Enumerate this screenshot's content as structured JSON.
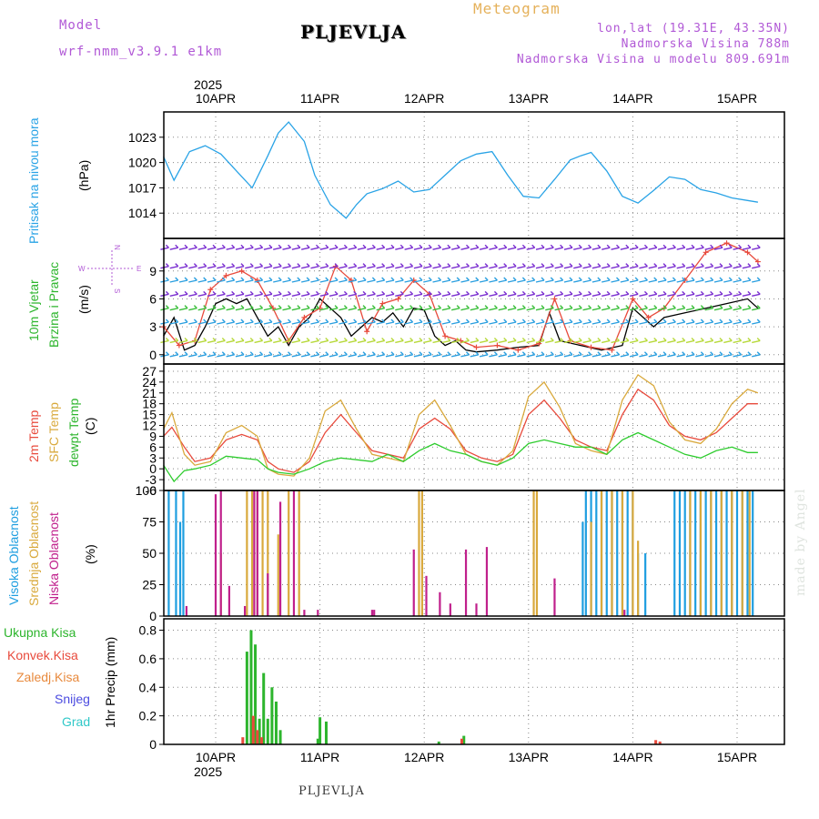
{
  "header": {
    "model_label": "Model",
    "model_version": "wrf-nmm_v3.9.1  e1km",
    "location": "PLJEVLJA",
    "app_title": "Meteogram",
    "coords": "lon,lat (19.31E, 43.35N)",
    "elevation": "Nadmorska Visina 788m",
    "model_elevation": "Nadmorska Visina u modelu 809.691m",
    "footer_location": "PLJEVLJA",
    "watermark": "made by Angel"
  },
  "time_axis": {
    "year": "2025",
    "days": [
      "10APR",
      "11APR",
      "12APR",
      "13APR",
      "14APR",
      "15APR"
    ]
  },
  "panel_labels": {
    "pressure": "Pritisak na nivou mora",
    "pressure_unit": "(hPa)",
    "wind_1": "10m Vjetar",
    "wind_2": "Brzina i Pravac",
    "wind_unit": "(m/s)",
    "compass_n": "N",
    "compass_s": "S",
    "compass_w": "W",
    "compass_e": "E",
    "temp_2m": "2m Temp",
    "temp_sfc": "SFC Temp",
    "temp_dew": "dewpt Temp",
    "temp_unit": "(C)",
    "cloud_high": "Visoka Oblacnost",
    "cloud_mid": "Srednja Oblacnost",
    "cloud_low": "Niska Oblacnost",
    "cloud_unit": "(%)",
    "precip_total": "Ukupna Kisa",
    "precip_conv": "Konvek.Kisa",
    "precip_frozen": "Zaledj.Kisa",
    "precip_snow": "Snijeg",
    "precip_hail": "Grad",
    "precip_unit": "1hr Precip (mm)"
  },
  "colors": {
    "pressure": "#29a3e6",
    "temp_2m": "#e84a3c",
    "temp_sfc": "#d9a93c",
    "dewpoint": "#2ecc2e",
    "wind_speed": "#000000",
    "wind_gust": "#e84a3c",
    "cloud_high": "#1e9ee0",
    "cloud_mid": "#d9a93c",
    "cloud_low": "#c0208c",
    "precip_total": "#2db52d",
    "precip_conv": "#e84a3c",
    "precip_frozen": "#e8893c",
    "precip_snow": "#4b4be0",
    "precip_hail": "#30c8c8"
  },
  "chart_data": [
    {
      "type": "line",
      "panel": "pressure",
      "ylabel": "(hPa)",
      "yticks": [
        1014,
        1017,
        1020,
        1023
      ],
      "ylim": [
        1011,
        1026
      ],
      "x_days": [
        0,
        0.1,
        0.25,
        0.4,
        0.55,
        0.7,
        0.85,
        1.0,
        1.1,
        1.2,
        1.35,
        1.45,
        1.6,
        1.75,
        1.85,
        1.95,
        2.1,
        2.25,
        2.4,
        2.55,
        2.7,
        2.85,
        3.0,
        3.15,
        3.3,
        3.45,
        3.6,
        3.75,
        3.9,
        4.0,
        4.1,
        4.25,
        4.4,
        4.55,
        4.7,
        4.85,
        5.0,
        5.15,
        5.3,
        5.45,
        5.6,
        5.7
      ],
      "values": [
        1020.7,
        1017.9,
        1021.3,
        1022.0,
        1021.0,
        1019.0,
        1017.0,
        1020.8,
        1023.5,
        1024.8,
        1022.5,
        1018.5,
        1015.0,
        1013.4,
        1015.0,
        1016.3,
        1016.9,
        1017.8,
        1016.5,
        1016.8,
        1018.5,
        1020.2,
        1021.0,
        1021.3,
        1018.5,
        1016.0,
        1015.8,
        1018.0,
        1020.3,
        1020.8,
        1021.2,
        1019.0,
        1016.0,
        1015.2,
        1016.7,
        1018.3,
        1018.0,
        1016.8,
        1016.4,
        1015.8,
        1015.5,
        1015.3
      ]
    },
    {
      "type": "line",
      "panel": "wind",
      "ylabel": "(m/s)",
      "yticks": [
        0,
        3,
        6,
        9
      ],
      "ylim": [
        -1,
        12.5
      ],
      "series": [
        {
          "name": "speed",
          "x_days": [
            0,
            0.1,
            0.2,
            0.3,
            0.4,
            0.5,
            0.6,
            0.7,
            0.8,
            0.9,
            1.0,
            1.1,
            1.2,
            1.3,
            1.4,
            1.5,
            1.6,
            1.7,
            1.8,
            1.9,
            2.0,
            2.1,
            2.2,
            2.3,
            2.4,
            2.5,
            2.6,
            2.7,
            2.8,
            2.9,
            3.0,
            3.2,
            3.4,
            3.6,
            3.7,
            3.8,
            4.0,
            4.2,
            4.4,
            4.5,
            4.6,
            4.7,
            4.8,
            5.0,
            5.2,
            5.4,
            5.6,
            5.7
          ],
          "values": [
            2,
            4,
            0.5,
            1,
            3,
            5.5,
            6,
            5.5,
            6,
            4,
            2,
            3,
            1,
            3,
            4,
            6,
            5,
            4,
            2,
            3,
            4,
            3.5,
            4.5,
            3,
            5,
            4.8,
            2,
            1,
            1.5,
            0.5,
            0.3,
            0.5,
            0.8,
            1.0,
            4.5,
            1.5,
            1.0,
            0.5,
            1.0,
            5.0,
            4.0,
            3.0,
            4.0,
            4.5,
            5.0,
            5.5,
            6.0,
            5.0
          ]
        },
        {
          "name": "gust",
          "x_days": [
            0,
            0.15,
            0.3,
            0.45,
            0.6,
            0.75,
            0.9,
            1.05,
            1.2,
            1.35,
            1.5,
            1.65,
            1.8,
            1.95,
            2.1,
            2.25,
            2.4,
            2.55,
            2.7,
            2.85,
            3.0,
            3.2,
            3.4,
            3.6,
            3.75,
            3.9,
            4.1,
            4.3,
            4.5,
            4.65,
            4.8,
            5.0,
            5.2,
            5.4,
            5.6,
            5.7
          ],
          "values": [
            3,
            1,
            1.5,
            7,
            8.5,
            9,
            8,
            5,
            1.5,
            4,
            5,
            9.5,
            8,
            2.5,
            5.5,
            6,
            8,
            6.5,
            2,
            1.5,
            0.8,
            1,
            0.5,
            1.2,
            6,
            1.5,
            0.8,
            0.5,
            6,
            4,
            5,
            8,
            11,
            12,
            11,
            10
          ]
        }
      ]
    },
    {
      "type": "line",
      "panel": "temperature",
      "ylabel": "(C)",
      "yticks": [
        -6,
        -3,
        0,
        3,
        6,
        9,
        12,
        15,
        18,
        21,
        24,
        27
      ],
      "ylim": [
        -6,
        29
      ],
      "series": [
        {
          "name": "2m Temp",
          "x_days": [
            0,
            0.08,
            0.2,
            0.3,
            0.45,
            0.6,
            0.75,
            0.9,
            1.0,
            1.1,
            1.25,
            1.4,
            1.55,
            1.7,
            1.85,
            2.0,
            2.15,
            2.3,
            2.45,
            2.6,
            2.75,
            2.9,
            3.05,
            3.2,
            3.35,
            3.5,
            3.65,
            3.8,
            3.95,
            4.1,
            4.25,
            4.4,
            4.55,
            4.7,
            4.85,
            5.0,
            5.15,
            5.3,
            5.45,
            5.6,
            5.7
          ],
          "values": [
            9,
            11.5,
            6,
            2,
            3,
            8,
            9.5,
            8,
            2,
            0,
            -1,
            2,
            10,
            15,
            10,
            5,
            4,
            3,
            11,
            14,
            11,
            5,
            3,
            2,
            4,
            15,
            19,
            14,
            8,
            6,
            5,
            15,
            22,
            19,
            12,
            9,
            8,
            10,
            14,
            18,
            18
          ]
        },
        {
          "name": "SFC Temp",
          "x_days": [
            0,
            0.08,
            0.2,
            0.3,
            0.45,
            0.6,
            0.75,
            0.9,
            1.0,
            1.1,
            1.25,
            1.4,
            1.55,
            1.7,
            1.85,
            2.0,
            2.15,
            2.3,
            2.45,
            2.6,
            2.75,
            2.9,
            3.05,
            3.2,
            3.35,
            3.5,
            3.65,
            3.8,
            3.95,
            4.1,
            4.25,
            4.4,
            4.55,
            4.7,
            4.85,
            5.0,
            5.15,
            5.3,
            5.45,
            5.6,
            5.7
          ],
          "values": [
            11,
            15.5,
            4,
            1,
            2,
            10,
            12,
            9,
            0,
            -1.5,
            -2,
            3,
            16,
            19,
            11,
            4,
            3,
            2,
            15,
            19,
            12,
            4,
            2,
            1,
            5,
            20,
            24,
            17,
            7,
            5,
            4,
            19,
            26,
            23,
            13,
            8,
            7,
            11,
            18,
            22,
            21
          ]
        },
        {
          "name": "dewpt Temp",
          "x_days": [
            0,
            0.1,
            0.2,
            0.3,
            0.45,
            0.6,
            0.75,
            0.9,
            1.0,
            1.1,
            1.25,
            1.4,
            1.55,
            1.7,
            1.85,
            2.0,
            2.15,
            2.3,
            2.45,
            2.6,
            2.75,
            2.9,
            3.05,
            3.2,
            3.35,
            3.5,
            3.65,
            3.8,
            3.95,
            4.1,
            4.25,
            4.4,
            4.55,
            4.7,
            4.85,
            5.0,
            5.15,
            5.3,
            5.45,
            5.6,
            5.7
          ],
          "values": [
            1,
            -3.5,
            -0.5,
            0,
            1,
            3.5,
            3,
            2.5,
            0,
            -1,
            -1.5,
            0,
            2,
            3,
            2.5,
            2,
            4,
            2,
            5,
            7,
            5,
            4,
            2,
            1,
            3,
            7,
            8,
            7,
            6,
            6,
            4,
            8,
            10,
            8,
            6,
            4,
            3,
            5,
            6,
            4.5,
            4.5
          ]
        }
      ]
    },
    {
      "type": "bar",
      "panel": "cloud",
      "ylabel": "(%)",
      "yticks": [
        0,
        25,
        50,
        75,
        100
      ],
      "ylim": [
        0,
        100
      ],
      "series": [
        {
          "name": "Visoka Oblacnost",
          "x_days": [
            0.05,
            0.12,
            0.16,
            0.19,
            4.02,
            4.05,
            4.1,
            4.15,
            4.2,
            4.25,
            4.3,
            4.35,
            4.4,
            4.45,
            4.5,
            4.55,
            4.62,
            4.9,
            4.95,
            5.0,
            5.05,
            5.1,
            5.15,
            5.2,
            5.25,
            5.3,
            5.35,
            5.4,
            5.45,
            5.5,
            5.55,
            5.6,
            5.65
          ],
          "values": [
            100,
            100,
            75,
            100,
            75,
            100,
            100,
            100,
            100,
            100,
            100,
            100,
            100,
            100,
            100,
            50,
            50,
            100,
            100,
            100,
            100,
            100,
            100,
            100,
            100,
            100,
            100,
            100,
            100,
            100,
            100,
            100,
            100
          ]
        },
        {
          "name": "Srednja Oblacnost",
          "x_days": [
            0.55,
            0.8,
            0.85,
            0.9,
            0.95,
            1.0,
            1.1,
            1.2,
            1.3,
            2.45,
            2.48,
            3.55,
            3.58,
            4.1,
            4.2,
            4.3,
            4.4,
            4.5,
            4.55,
            5.05,
            5.15,
            5.25,
            5.35,
            5.45,
            5.55,
            5.62
          ],
          "values": [
            50,
            100,
            100,
            100,
            100,
            100,
            65,
            100,
            100,
            100,
            100,
            100,
            100,
            75,
            100,
            100,
            100,
            100,
            60,
            100,
            100,
            100,
            100,
            100,
            100,
            100
          ]
        },
        {
          "name": "Niska Oblacnost",
          "x_days": [
            0.22,
            0.5,
            0.55,
            0.63,
            0.78,
            0.87,
            0.9,
            1.0,
            1.12,
            1.25,
            1.35,
            1.48,
            2.0,
            2.02,
            2.4,
            2.52,
            2.65,
            2.75,
            2.9,
            3.0,
            3.1,
            3.75,
            4.42
          ],
          "values": [
            8,
            97,
            100,
            24,
            8,
            100,
            100,
            34,
            91,
            100,
            5,
            5,
            5,
            5,
            53,
            32,
            19,
            10,
            53,
            10,
            55,
            30,
            5
          ]
        }
      ]
    },
    {
      "type": "bar",
      "panel": "precipitation",
      "ylabel": "1hr Precip (mm)",
      "yticks": [
        0,
        0.2,
        0.4,
        0.6,
        0.8
      ],
      "ylim": [
        0,
        0.88
      ],
      "series": [
        {
          "name": "Ukupna Kisa",
          "x_days": [
            0.8,
            0.84,
            0.88,
            0.92,
            0.96,
            1.0,
            1.04,
            1.08,
            1.12,
            1.48,
            1.5,
            1.56,
            2.64,
            2.88
          ],
          "values": [
            0.65,
            0.8,
            0.7,
            0.18,
            0.5,
            0.18,
            0.4,
            0.3,
            0.1,
            0.04,
            0.19,
            0.16,
            0.02,
            0.06
          ]
        },
        {
          "name": "Konvek.Kisa",
          "x_days": [
            0.76,
            0.86,
            0.9,
            0.94,
            2.86,
            4.72,
            4.76
          ],
          "values": [
            0.05,
            0.2,
            0.1,
            0.05,
            0.04,
            0.03,
            0.02
          ]
        }
      ]
    }
  ]
}
